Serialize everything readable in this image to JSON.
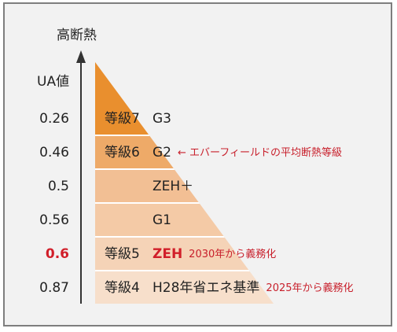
{
  "axis": {
    "title": "高断熱",
    "ua_label": "UA値"
  },
  "levels": [
    {
      "ua": "0.26",
      "grade": "等級7",
      "standard": "G3",
      "note": "",
      "color": "#e98f2e",
      "highlight": false
    },
    {
      "ua": "0.46",
      "grade": "等級6",
      "standard": "G2",
      "note": "← エバーフィールドの平均断熱等級",
      "color": "#eeaa68",
      "highlight": false
    },
    {
      "ua": "0.5",
      "grade": "",
      "standard": "ZEH＋",
      "note": "",
      "color": "#f2bf94",
      "highlight": false
    },
    {
      "ua": "0.56",
      "grade": "",
      "standard": "G1",
      "note": "",
      "color": "#f4caa6",
      "highlight": false
    },
    {
      "ua": "0.6",
      "grade": "等級5",
      "standard": "ZEH",
      "note": "2030年から義務化",
      "color": "#f5d3b7",
      "highlight": true
    },
    {
      "ua": "0.87",
      "grade": "等級4",
      "standard": "H28年省エネ基準",
      "note": "2025年から義務化",
      "color": "#f7dfcb",
      "highlight": false
    }
  ],
  "colors": {
    "frame": "#7e7e7e",
    "background": "#f2f2f2",
    "accent": "#d11f2a",
    "axis": "#333333"
  }
}
